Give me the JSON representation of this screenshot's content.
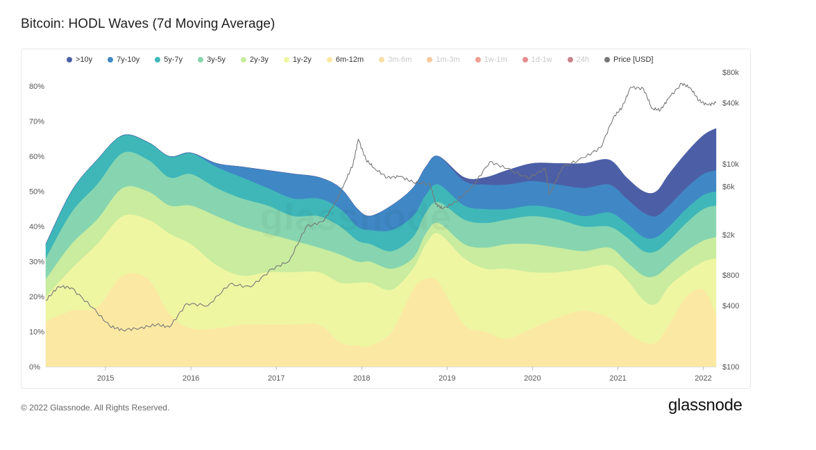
{
  "title": "Bitcoin: HODL Waves (7d Moving Average)",
  "footer": "© 2022 Glassnode. All Rights Reserved.",
  "brand": "glassnode",
  "watermark": "glassnode",
  "legend": [
    {
      "label": ">10y",
      "color": "#4c5fa6",
      "dim": false
    },
    {
      "label": "7y-10y",
      "color": "#3f88c5",
      "dim": false
    },
    {
      "label": "5y-7y",
      "color": "#3fb7b9",
      "dim": false
    },
    {
      "label": "3y-5y",
      "color": "#86d5b0",
      "dim": false
    },
    {
      "label": "2y-3y",
      "color": "#c9ec9f",
      "dim": false
    },
    {
      "label": "1y-2y",
      "color": "#eef6a2",
      "dim": false
    },
    {
      "label": "6m-12m",
      "color": "#fbe9a3",
      "dim": false
    },
    {
      "label": "3m-6m",
      "color": "#f8c25c",
      "dim": true
    },
    {
      "label": "1m-3m",
      "color": "#f39a4b",
      "dim": true
    },
    {
      "label": "1w-1m",
      "color": "#e0502f",
      "dim": true
    },
    {
      "label": "1d-1w",
      "color": "#d42e35",
      "dim": true
    },
    {
      "label": "24h",
      "color": "#9e1d2e",
      "dim": true
    },
    {
      "label": "Price [USD]",
      "color": "#777777",
      "dim": false
    }
  ],
  "chart_data": {
    "type": "area",
    "title": "Bitcoin: HODL Waves (7d Moving Average)",
    "stacked": true,
    "x_tick_labels": [
      "2015",
      "2016",
      "2017",
      "2018",
      "2019",
      "2020",
      "2021",
      "2022"
    ],
    "y_left_ticks": [
      "0%",
      "10%",
      "20%",
      "30%",
      "40%",
      "50%",
      "60%",
      "70%",
      "80%"
    ],
    "y_right_ticks": [
      "$100",
      "$400",
      "$800",
      "$2k",
      "$6k",
      "$10k",
      "$40k",
      "$80k"
    ],
    "ylim_left": [
      0,
      0.84
    ],
    "ylim_right_log": [
      100,
      80000
    ],
    "x": [
      2014.3,
      2014.6,
      2014.9,
      2015.2,
      2015.5,
      2015.75,
      2016.0,
      2016.3,
      2016.6,
      2016.9,
      2017.2,
      2017.5,
      2017.75,
      2017.95,
      2018.1,
      2018.35,
      2018.6,
      2018.75,
      2018.9,
      2019.2,
      2019.45,
      2019.7,
      2020.0,
      2020.3,
      2020.6,
      2020.9,
      2021.1,
      2021.3,
      2021.45,
      2021.6,
      2021.8,
      2022.0,
      2022.15
    ],
    "series": [
      {
        "name": "6m-12m",
        "color": "#fbe9a3",
        "values": [
          0.13,
          0.16,
          0.17,
          0.26,
          0.25,
          0.15,
          0.11,
          0.11,
          0.12,
          0.12,
          0.12,
          0.12,
          0.07,
          0.06,
          0.06,
          0.1,
          0.22,
          0.25,
          0.24,
          0.12,
          0.1,
          0.08,
          0.11,
          0.14,
          0.16,
          0.14,
          0.1,
          0.07,
          0.07,
          0.12,
          0.2,
          0.22,
          0.15
        ]
      },
      {
        "name": "1y-2y",
        "color": "#eef6a2",
        "values": [
          0.07,
          0.12,
          0.18,
          0.17,
          0.17,
          0.23,
          0.24,
          0.18,
          0.14,
          0.15,
          0.15,
          0.15,
          0.17,
          0.18,
          0.18,
          0.12,
          0.06,
          0.1,
          0.14,
          0.19,
          0.18,
          0.2,
          0.16,
          0.13,
          0.12,
          0.15,
          0.15,
          0.12,
          0.11,
          0.11,
          0.07,
          0.08,
          0.16
        ]
      },
      {
        "name": "2y-3y",
        "color": "#c9ec9f",
        "values": [
          0.05,
          0.07,
          0.07,
          0.08,
          0.08,
          0.08,
          0.11,
          0.14,
          0.14,
          0.11,
          0.09,
          0.07,
          0.08,
          0.06,
          0.06,
          0.06,
          0.03,
          0.03,
          0.03,
          0.04,
          0.06,
          0.07,
          0.08,
          0.07,
          0.05,
          0.05,
          0.05,
          0.07,
          0.08,
          0.06,
          0.06,
          0.06,
          0.06
        ]
      },
      {
        "name": "3y-5y",
        "color": "#86d5b0",
        "values": [
          0.06,
          0.09,
          0.1,
          0.1,
          0.09,
          0.08,
          0.09,
          0.08,
          0.08,
          0.08,
          0.07,
          0.09,
          0.08,
          0.06,
          0.05,
          0.05,
          0.06,
          0.06,
          0.06,
          0.07,
          0.07,
          0.07,
          0.08,
          0.08,
          0.07,
          0.06,
          0.07,
          0.07,
          0.07,
          0.07,
          0.08,
          0.09,
          0.09
        ]
      },
      {
        "name": "5y-7y",
        "color": "#3fb7b9",
        "values": [
          0.04,
          0.06,
          0.07,
          0.05,
          0.05,
          0.06,
          0.06,
          0.06,
          0.06,
          0.05,
          0.05,
          0.05,
          0.05,
          0.04,
          0.04,
          0.06,
          0.06,
          0.05,
          0.05,
          0.04,
          0.04,
          0.03,
          0.03,
          0.03,
          0.03,
          0.04,
          0.04,
          0.04,
          0.04,
          0.04,
          0.04,
          0.04,
          0.04
        ]
      },
      {
        "name": "7y-10y",
        "color": "#3f88c5",
        "values": [
          0.0,
          0.0,
          0.0,
          0.0,
          0.0,
          0.0,
          0.0,
          0.01,
          0.03,
          0.05,
          0.07,
          0.06,
          0.06,
          0.05,
          0.04,
          0.07,
          0.08,
          0.08,
          0.08,
          0.07,
          0.07,
          0.07,
          0.07,
          0.07,
          0.08,
          0.08,
          0.07,
          0.07,
          0.06,
          0.06,
          0.06,
          0.06,
          0.06
        ]
      },
      {
        "name": ">10y",
        "color": "#4c5fa6",
        "values": [
          0.0,
          0.0,
          0.0,
          0.0,
          0.0,
          0.0,
          0.0,
          0.0,
          0.0,
          0.0,
          0.0,
          0.0,
          0.0,
          0.0,
          0.0,
          0.0,
          0.0,
          0.0,
          0.0,
          0.01,
          0.02,
          0.04,
          0.05,
          0.06,
          0.07,
          0.07,
          0.06,
          0.06,
          0.07,
          0.09,
          0.1,
          0.11,
          0.12
        ]
      }
    ],
    "price_series": {
      "name": "Price [USD]",
      "color": "#777777",
      "x": [
        2014.3,
        2014.45,
        2014.6,
        2014.85,
        2015.05,
        2015.2,
        2015.4,
        2015.6,
        2015.75,
        2015.95,
        2016.2,
        2016.45,
        2016.7,
        2016.95,
        2017.15,
        2017.35,
        2017.55,
        2017.7,
        2017.8,
        2017.9,
        2017.96,
        2018.05,
        2018.15,
        2018.3,
        2018.45,
        2018.6,
        2018.8,
        2018.87,
        2018.95,
        2019.1,
        2019.3,
        2019.5,
        2019.7,
        2019.95,
        2020.15,
        2020.2,
        2020.35,
        2020.6,
        2020.8,
        2020.95,
        2021.05,
        2021.15,
        2021.3,
        2021.4,
        2021.5,
        2021.6,
        2021.75,
        2021.85,
        2021.95,
        2022.05,
        2022.15
      ],
      "values": [
        450,
        620,
        600,
        380,
        250,
        230,
        240,
        260,
        245,
        420,
        400,
        650,
        610,
        920,
        1100,
        2400,
        2700,
        4300,
        6500,
        10000,
        17500,
        11000,
        9000,
        7300,
        7500,
        6600,
        6300,
        4000,
        3600,
        4200,
        6000,
        10500,
        9000,
        7200,
        9000,
        5000,
        9200,
        11500,
        14500,
        29000,
        36000,
        57000,
        55000,
        35000,
        34000,
        45000,
        62000,
        56000,
        42000,
        38000,
        40000
      ]
    }
  }
}
